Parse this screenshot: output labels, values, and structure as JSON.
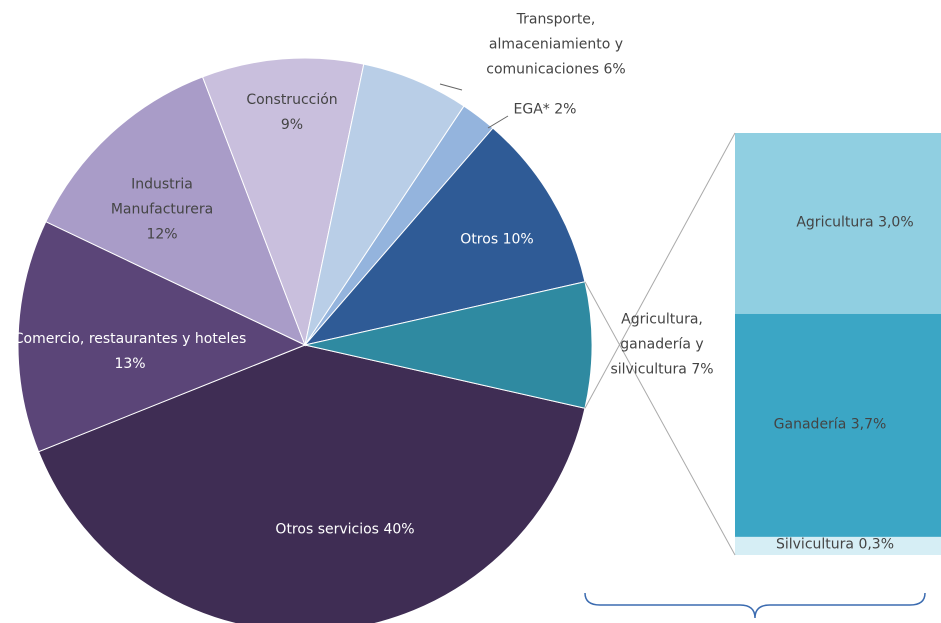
{
  "chart_data": [
    {
      "type": "pie",
      "categories": [
        "Otros servicios",
        "Comercio, restaurantes y hoteles",
        "Industria Manufacturera",
        "Construcción",
        "Transporte, almaceniamiento y comunicaciones",
        "EGA*",
        "Otros",
        "Agricultura, ganadería y silvicultura"
      ],
      "values": [
        40,
        13,
        12,
        9,
        6,
        2,
        10,
        7
      ],
      "value_labels": [
        "40%",
        "13%",
        "12%",
        "9%",
        "6%",
        "2%",
        "10%",
        "7%"
      ],
      "colors": [
        "#3f2d54",
        "#5b4578",
        "#a99cc8",
        "#c9bfdd",
        "#b9cee7",
        "#94b4dd",
        "#2f5b96",
        "#2f8aa1"
      ]
    },
    {
      "type": "stacked_bar",
      "categories": [
        "Agricultura",
        "Ganadería",
        "Silvicultura"
      ],
      "values": [
        3.0,
        3.7,
        0.3
      ],
      "value_labels": [
        "3,0%",
        "3,7%",
        "0,3%"
      ],
      "colors": [
        "#90cfe1",
        "#3ba6c5",
        "#d6eef5"
      ]
    }
  ]
}
